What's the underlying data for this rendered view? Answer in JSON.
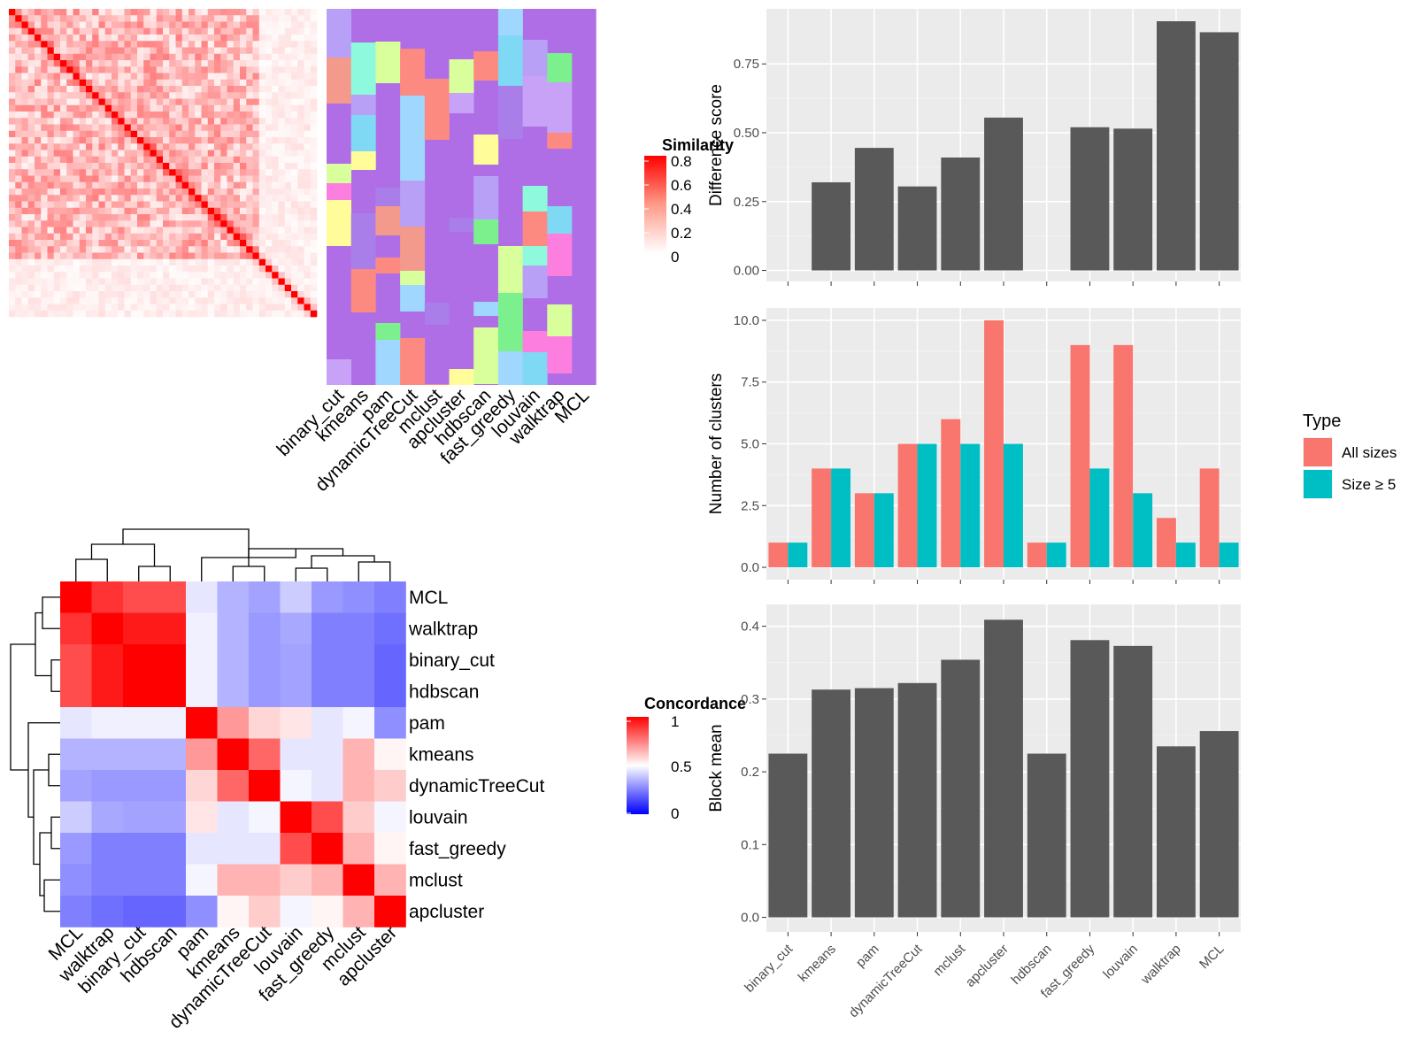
{
  "chart_data": [
    {
      "type": "heatmap",
      "legend_title": "Similarity",
      "legend_ticks": [
        "0.8",
        "0.6",
        "0.4",
        "0.2",
        "0"
      ],
      "legend_placement": "right"
    },
    {
      "type": "heatmap",
      "methods": [
        "binary_cut",
        "kmeans",
        "pam",
        "dynamicTreeCut",
        "mclust",
        "apcluster",
        "hdbscan",
        "fast_greedy",
        "louvain",
        "walktrap",
        "MCL"
      ]
    },
    {
      "type": "heatmap",
      "legend_title": "Concordance",
      "legend_ticks": [
        "1",
        "0.5",
        "0"
      ],
      "legend_placement": "right",
      "order": [
        "MCL",
        "walktrap",
        "binary_cut",
        "hdbscan",
        "pam",
        "kmeans",
        "dynamicTreeCut",
        "louvain",
        "fast_greedy",
        "mclust",
        "apcluster"
      ],
      "values": [
        [
          1.0,
          0.9,
          0.85,
          0.85,
          0.45,
          0.35,
          0.32,
          0.4,
          0.3,
          0.28,
          0.25
        ],
        [
          0.9,
          1.0,
          0.95,
          0.95,
          0.47,
          0.35,
          0.3,
          0.33,
          0.25,
          0.25,
          0.22
        ],
        [
          0.85,
          0.95,
          1.0,
          1.0,
          0.47,
          0.35,
          0.3,
          0.32,
          0.25,
          0.25,
          0.2
        ],
        [
          0.85,
          0.95,
          1.0,
          1.0,
          0.47,
          0.35,
          0.3,
          0.32,
          0.25,
          0.25,
          0.2
        ],
        [
          0.45,
          0.47,
          0.47,
          0.47,
          1.0,
          0.7,
          0.58,
          0.55,
          0.45,
          0.48,
          0.28
        ],
        [
          0.35,
          0.35,
          0.35,
          0.35,
          0.7,
          1.0,
          0.8,
          0.45,
          0.45,
          0.65,
          0.52
        ],
        [
          0.32,
          0.3,
          0.3,
          0.3,
          0.58,
          0.8,
          1.0,
          0.48,
          0.45,
          0.65,
          0.6
        ],
        [
          0.4,
          0.33,
          0.32,
          0.32,
          0.55,
          0.45,
          0.48,
          1.0,
          0.85,
          0.6,
          0.48
        ],
        [
          0.3,
          0.25,
          0.25,
          0.25,
          0.45,
          0.45,
          0.45,
          0.85,
          1.0,
          0.65,
          0.52
        ],
        [
          0.28,
          0.25,
          0.25,
          0.25,
          0.48,
          0.65,
          0.65,
          0.6,
          0.65,
          1.0,
          0.65
        ],
        [
          0.25,
          0.22,
          0.2,
          0.2,
          0.28,
          0.52,
          0.6,
          0.48,
          0.52,
          0.65,
          1.0
        ]
      ]
    },
    {
      "type": "bar",
      "categories": [
        "binary_cut",
        "kmeans",
        "pam",
        "dynamicTreeCut",
        "mclust",
        "apcluster",
        "hdbscan",
        "fast_greedy",
        "louvain",
        "walktrap",
        "MCL"
      ],
      "values": [
        0,
        0.32,
        0.445,
        0.305,
        0.41,
        0.555,
        0,
        0.52,
        0.515,
        0.905,
        0.865
      ],
      "ylabel": "Difference score",
      "yticks": [
        "0.00",
        "0.25",
        "0.50",
        "0.75"
      ],
      "ylim": [
        -0.04,
        0.95
      ]
    },
    {
      "type": "bar",
      "categories": [
        "binary_cut",
        "kmeans",
        "pam",
        "dynamicTreeCut",
        "mclust",
        "apcluster",
        "hdbscan",
        "fast_greedy",
        "louvain",
        "walktrap",
        "MCL"
      ],
      "ylabel": "Number of clusters",
      "yticks": [
        "0.0",
        "2.5",
        "5.0",
        "7.5",
        "10.0"
      ],
      "ylim": [
        -0.5,
        10.5
      ],
      "legend_title": "Type",
      "legend_placement": "right",
      "series": [
        {
          "name": "All sizes",
          "color": "#f8766d",
          "values": [
            1,
            4,
            3,
            5,
            6,
            10,
            1,
            9,
            9,
            2,
            4
          ]
        },
        {
          "name": "Size ≥ 5",
          "color": "#00bfc4",
          "values": [
            1,
            4,
            3,
            5,
            5,
            5,
            1,
            4,
            3,
            1,
            1
          ]
        }
      ]
    },
    {
      "type": "bar",
      "categories": [
        "binary_cut",
        "kmeans",
        "pam",
        "dynamicTreeCut",
        "mclust",
        "apcluster",
        "hdbscan",
        "fast_greedy",
        "louvain",
        "walktrap",
        "MCL"
      ],
      "values": [
        0.225,
        0.313,
        0.315,
        0.322,
        0.354,
        0.409,
        0.225,
        0.381,
        0.373,
        0.235,
        0.256
      ],
      "ylabel": "Block mean",
      "yticks": [
        "0.0",
        "0.1",
        "0.2",
        "0.3",
        "0.4"
      ],
      "ylim": [
        -0.02,
        0.43
      ]
    }
  ]
}
